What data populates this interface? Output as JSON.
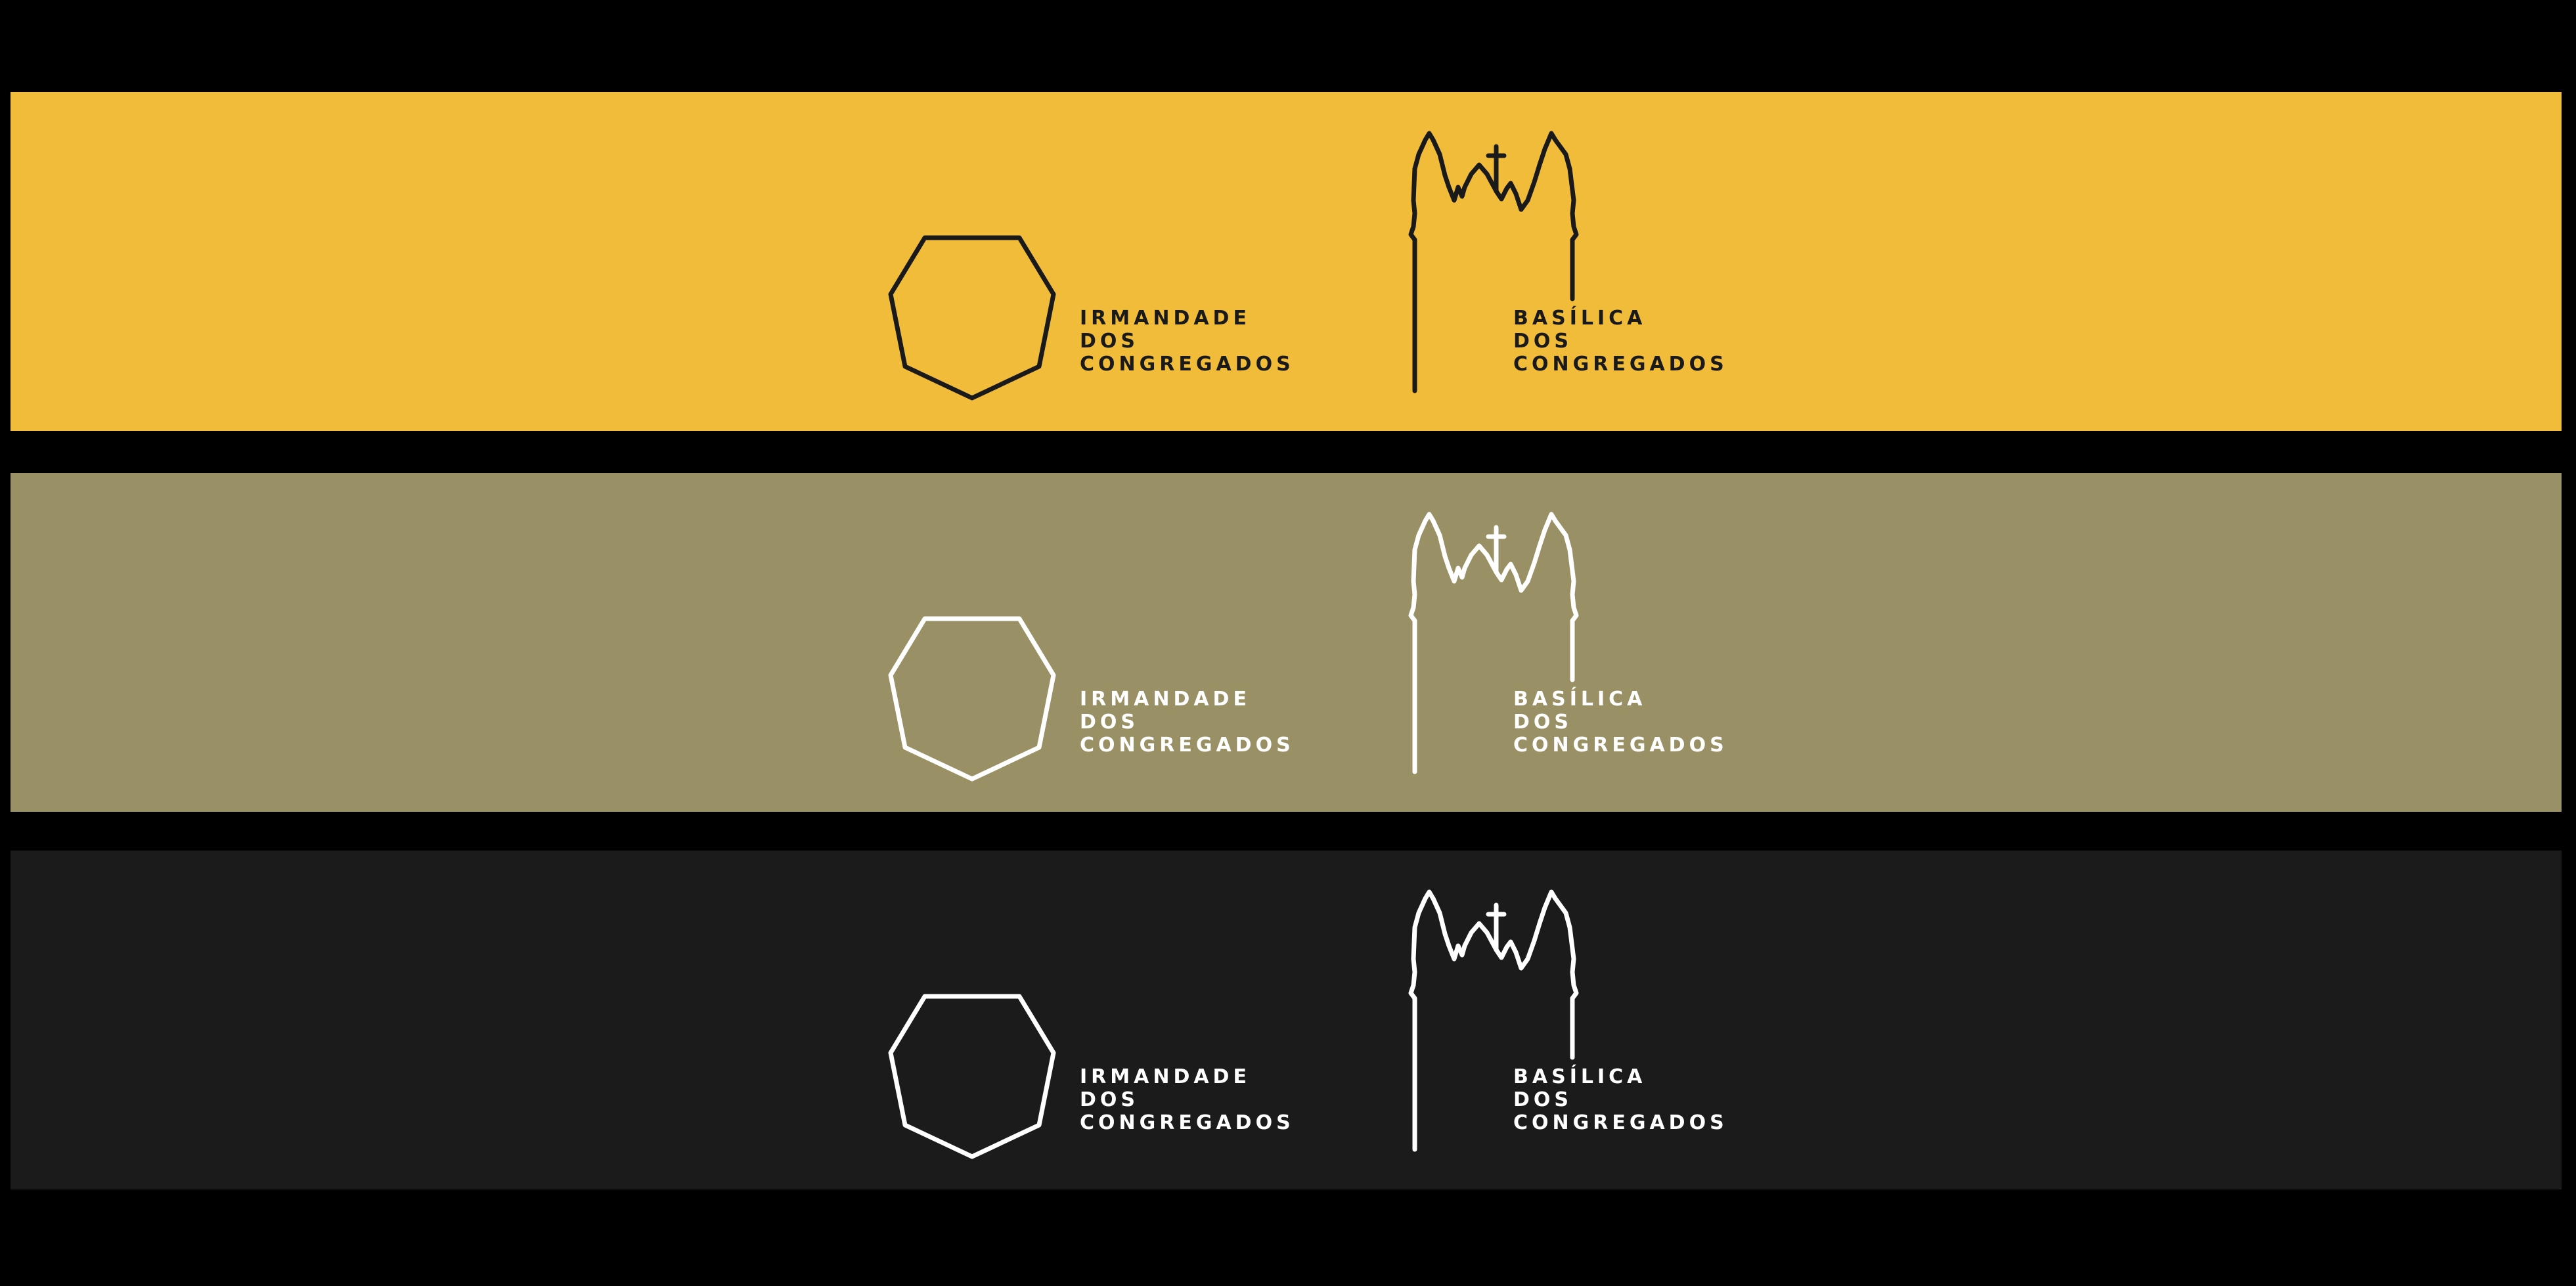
{
  "variants": [
    {
      "name": "yellow",
      "background": "#F2BC3B",
      "foreground": "#1A1A1A",
      "left_logo": {
        "icon": "heptagon-icon",
        "lines": [
          "IRMANDADE",
          "DOS",
          "CONGREGADOS"
        ]
      },
      "right_logo": {
        "icon": "basilica-tower-icon",
        "lines": [
          "BASÍLICA",
          "DOS",
          "CONGREGADOS"
        ]
      }
    },
    {
      "name": "olive",
      "background": "#999165",
      "foreground": "#FFFFFF",
      "left_logo": {
        "icon": "heptagon-icon",
        "lines": [
          "IRMANDADE",
          "DOS",
          "CONGREGADOS"
        ]
      },
      "right_logo": {
        "icon": "basilica-tower-icon",
        "lines": [
          "BASÍLICA",
          "DOS",
          "CONGREGADOS"
        ]
      }
    },
    {
      "name": "charcoal",
      "background": "#1B1B1B",
      "foreground": "#FFFFFF",
      "left_logo": {
        "icon": "heptagon-icon",
        "lines": [
          "IRMANDADE",
          "DOS",
          "CONGREGADOS"
        ]
      },
      "right_logo": {
        "icon": "basilica-tower-icon",
        "lines": [
          "BASÍLICA",
          "DOS",
          "CONGREGADOS"
        ]
      }
    }
  ]
}
